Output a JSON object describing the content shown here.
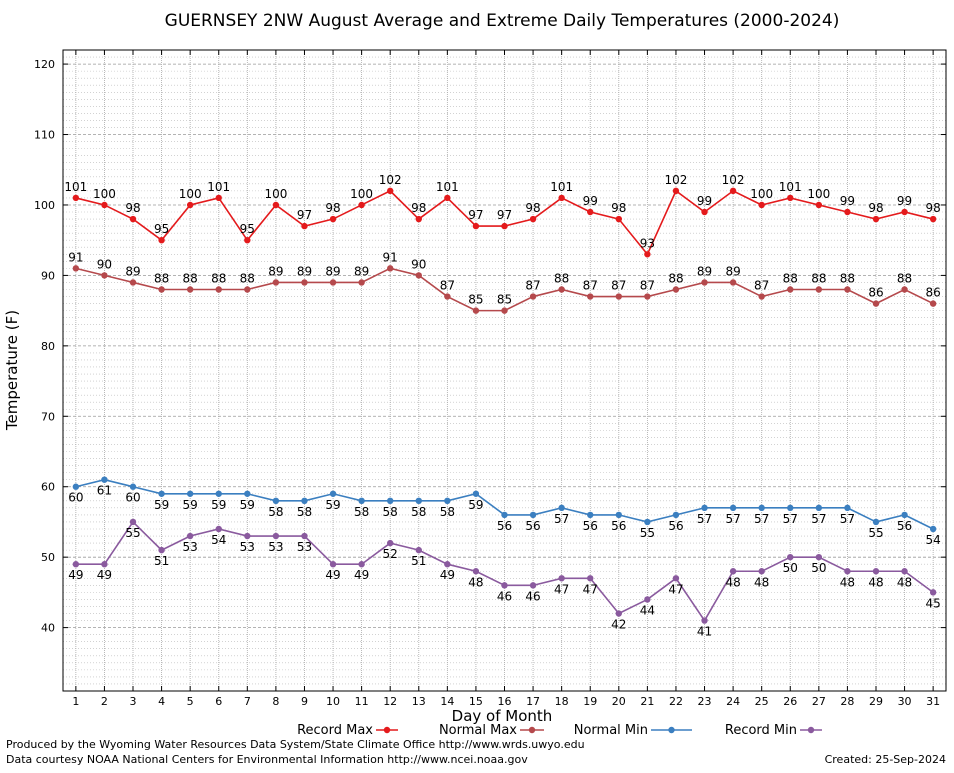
{
  "chart_data": {
    "type": "line",
    "title": "GUERNSEY 2NW August Average and Extreme Daily Temperatures (2000-2024)",
    "xlabel": "Day of Month",
    "ylabel": "Temperature (F)",
    "ylim": [
      31,
      122
    ],
    "yticks": [
      40,
      50,
      60,
      70,
      80,
      90,
      100,
      110,
      120
    ],
    "x": [
      1,
      2,
      3,
      4,
      5,
      6,
      7,
      8,
      9,
      10,
      11,
      12,
      13,
      14,
      15,
      16,
      17,
      18,
      19,
      20,
      21,
      22,
      23,
      24,
      25,
      26,
      27,
      28,
      29,
      30,
      31
    ],
    "grid": true,
    "legend_position": "bottom",
    "series": [
      {
        "name": "Record Max",
        "color": "#e41a1c",
        "label_position": "above",
        "values": [
          101,
          100,
          98,
          95,
          100,
          101,
          95,
          100,
          97,
          98,
          100,
          102,
          98,
          101,
          97,
          97,
          98,
          101,
          99,
          98,
          93,
          102,
          99,
          102,
          100,
          101,
          100,
          99,
          98,
          99,
          98
        ]
      },
      {
        "name": "Normal Max",
        "color": "#b5494c",
        "label_position": "above",
        "values": [
          91,
          90,
          89,
          88,
          88,
          88,
          88,
          89,
          89,
          89,
          89,
          91,
          90,
          87,
          85,
          85,
          87,
          88,
          87,
          87,
          87,
          88,
          89,
          89,
          87,
          88,
          88,
          88,
          86,
          88,
          86
        ]
      },
      {
        "name": "Normal Min",
        "color": "#3b7fc0",
        "label_position": "below",
        "values": [
          60,
          61,
          60,
          59,
          59,
          59,
          59,
          58,
          58,
          59,
          58,
          58,
          58,
          58,
          59,
          56,
          56,
          57,
          56,
          56,
          55,
          56,
          57,
          57,
          57,
          57,
          57,
          57,
          55,
          56,
          54
        ]
      },
      {
        "name": "Record Min",
        "color": "#8a5a9e",
        "label_position": "below",
        "values": [
          49,
          49,
          55,
          51,
          53,
          54,
          53,
          53,
          53,
          49,
          49,
          52,
          51,
          49,
          48,
          46,
          46,
          47,
          47,
          42,
          44,
          47,
          41,
          48,
          48,
          50,
          50,
          48,
          48,
          48,
          45
        ]
      }
    ]
  },
  "footer": {
    "produced_by": "Produced by the Wyoming Water Resources Data System/State Climate Office http://www.wrds.uwyo.edu",
    "data_courtesy": "Data courtesy NOAA National Centers for Environmental Information http://www.ncei.noaa.gov",
    "created": "Created: 25-Sep-2024"
  }
}
